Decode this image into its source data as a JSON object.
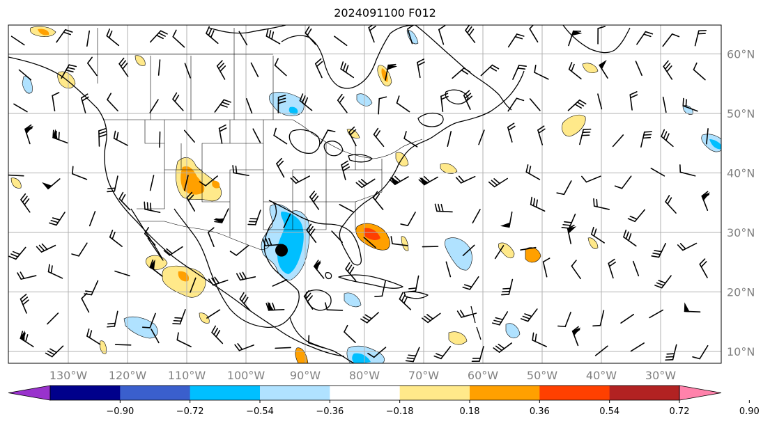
{
  "title": "2024091100 F012",
  "lon_labels": [
    "130°W",
    "120°W",
    "110°W",
    "100°W",
    "90°W",
    "80°W",
    "70°W",
    "60°W",
    "50°W",
    "40°W",
    "30°W"
  ],
  "lat_labels": [
    "60°N",
    "50°N",
    "40°N",
    "30°N",
    "20°N",
    "10°N"
  ],
  "colorbar": {
    "colors": [
      "#9932cc",
      "#00008b",
      "#3a5fcd",
      "#00bfff",
      "#b0e2ff",
      "#ffffff",
      "#ffe98a",
      "#ffa000",
      "#ff4000",
      "#b22222",
      "#ff82ab"
    ],
    "ticks": [
      "−0.90",
      "−0.72",
      "−0.54",
      "−0.36",
      "−0.18",
      "0.18",
      "0.36",
      "0.54",
      "0.72",
      "0.90"
    ]
  },
  "storm_marker": {
    "lon": -94.0,
    "lat": 27.0
  }
}
